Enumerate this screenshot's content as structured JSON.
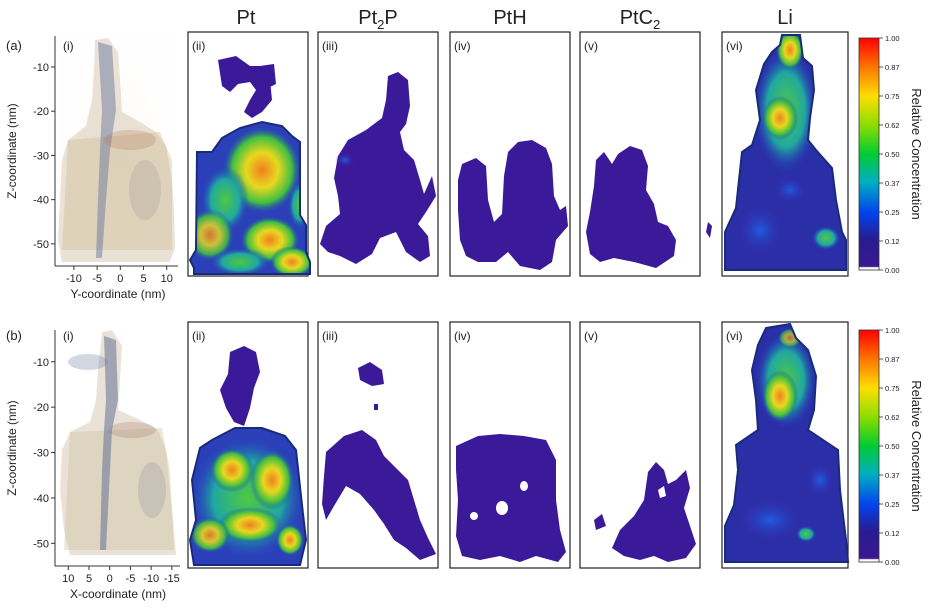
{
  "column_titles": [
    {
      "base": "Pt",
      "sub": ""
    },
    {
      "base": "Pt",
      "sub": "2",
      "tail": "P"
    },
    {
      "base": "PtH",
      "sub": ""
    },
    {
      "base": "PtC",
      "sub": "2"
    },
    {
      "base": "Li",
      "sub": ""
    }
  ],
  "rows": [
    {
      "row_label": "(a)",
      "panel_labels": [
        "(i)",
        "(ii)",
        "(iii)",
        "(iv)",
        "(v)",
        "(vi)"
      ],
      "y_axis_title": "Z-coordinate (nm)",
      "y_ticks": [
        "-10",
        "-20",
        "-30",
        "-40",
        "-50"
      ],
      "x_axis_title": "Y-coordinate (nm)",
      "x_ticks": [
        "-10",
        "-5",
        "0",
        "5",
        "10"
      ]
    },
    {
      "row_label": "(b)",
      "panel_labels": [
        "(i)",
        "(ii)",
        "(iii)",
        "(iv)",
        "(v)",
        "(vi)"
      ],
      "y_axis_title": "Z-coordinate (nm)",
      "y_ticks": [
        "-10",
        "-20",
        "-30",
        "-40",
        "-50"
      ],
      "x_axis_title": "X-coordinate (nm)",
      "x_ticks": [
        "10",
        "5",
        "0",
        "-5",
        "-10",
        "-15"
      ]
    }
  ],
  "colorbar": {
    "title": "Relative Concentration",
    "ticks": [
      "1.00",
      "0.87",
      "0.75",
      "0.62",
      "0.50",
      "0.37",
      "0.25",
      "0.12",
      "0.00"
    ],
    "colors": [
      "#ff0000",
      "#ff8800",
      "#ffee00",
      "#66dd00",
      "#00cc44",
      "#00aacc",
      "#0033ee",
      "#2a1b90",
      "#ffffff"
    ]
  },
  "colors": {
    "low": "#3b1a9a",
    "blue": "#2040d0",
    "green": "#40c840",
    "yellow": "#e8e020",
    "orange": "#f8a020",
    "red": "#f02010"
  }
}
